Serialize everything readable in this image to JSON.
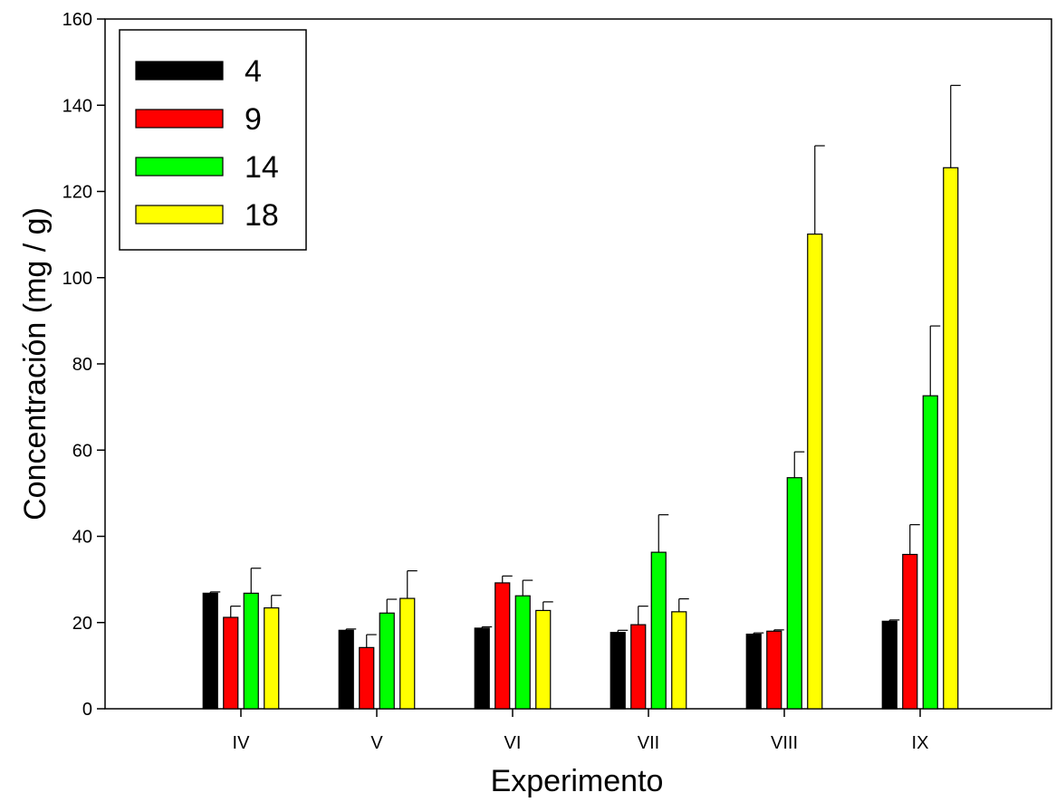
{
  "chart_data": {
    "type": "bar",
    "xlabel": "Experimento",
    "ylabel": "Concentración (mg / g)",
    "categories": [
      "IV",
      "V",
      "VI",
      "VII",
      "VIII",
      "IX"
    ],
    "ylim": [
      0,
      160
    ],
    "yticks": [
      0,
      20,
      40,
      60,
      80,
      100,
      120,
      140,
      160
    ],
    "grid": false,
    "legend_position": "top-left",
    "series": [
      {
        "name": "4",
        "color": "#000000",
        "values": [
          26.8,
          18.2,
          18.7,
          17.7,
          17.3,
          20.3
        ],
        "errors": [
          0.3,
          0.3,
          0.3,
          0.5,
          0.3,
          0.3
        ]
      },
      {
        "name": "9",
        "color": "#ff0000",
        "values": [
          21.2,
          14.2,
          29.2,
          19.5,
          18.0,
          35.8
        ],
        "errors": [
          2.6,
          3.0,
          1.6,
          4.3,
          0.3,
          6.9
        ]
      },
      {
        "name": "14",
        "color": "#00ff00",
        "values": [
          26.8,
          22.2,
          26.2,
          36.3,
          53.6,
          72.6
        ],
        "errors": [
          5.8,
          3.2,
          3.6,
          8.7,
          6.0,
          16.2
        ]
      },
      {
        "name": "18",
        "color": "#ffff00",
        "values": [
          23.4,
          25.6,
          22.8,
          22.5,
          110.1,
          125.5
        ],
        "errors": [
          2.9,
          6.4,
          2.0,
          3.0,
          20.5,
          19.1
        ]
      }
    ]
  }
}
